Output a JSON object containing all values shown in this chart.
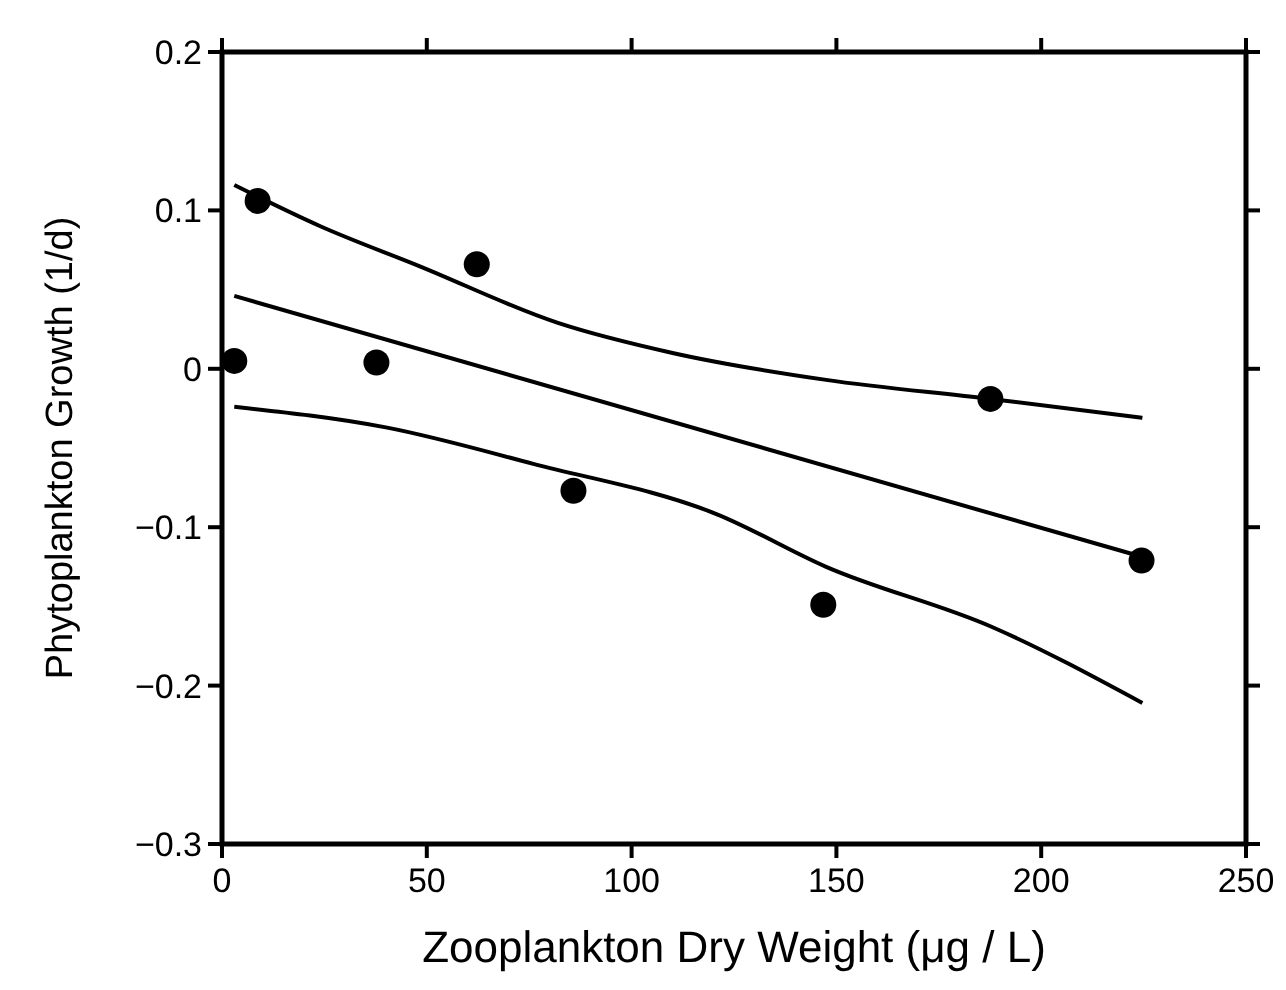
{
  "chart_data": {
    "type": "scatter",
    "xlabel": "Zooplankton Dry Weight (μg / L)",
    "ylabel": "Phytoplankton Growth (1/d)",
    "xlim": [
      0,
      250
    ],
    "xticks": [
      0,
      50,
      100,
      150,
      200,
      250
    ],
    "ylim": [
      -0.3,
      0.2
    ],
    "yticks": [
      {
        "value": -0.3,
        "label": "−0.3"
      },
      {
        "value": -0.2,
        "label": "−0.2"
      },
      {
        "value": -0.1,
        "label": "−0.1"
      },
      0,
      0.1,
      0.2
    ],
    "grid": false,
    "marker": "circle",
    "series": [
      {
        "color": "#000000",
        "x": [
          3,
          8.7,
          37.7,
          62.2,
          85.8,
          146.8,
          187.6,
          224.5
        ],
        "values": [
          0.005,
          0.106,
          0.004,
          0.066,
          -0.077,
          -0.149,
          -0.019,
          -0.121
        ]
      },
      {
        "type": "line",
        "color": "#000000",
        "marker": "none",
        "line_style": "solid",
        "x": [
          3,
          225
        ],
        "values": [
          0.046,
          -0.119
        ]
      },
      {
        "type": "line",
        "color": "#000000",
        "marker": "none",
        "line_style": "solid",
        "x": [
          3,
          24,
          48,
          82,
          110,
          147.5,
          187.6,
          224.7
        ],
        "values": [
          0.116,
          0.09,
          0.065,
          0.029,
          0.01,
          -0.007,
          -0.019,
          -0.031
        ]
      },
      {
        "type": "line",
        "color": "#000000",
        "marker": "none",
        "line_style": "solid",
        "x": [
          3,
          40,
          76,
          121,
          147.5,
          188,
          224.7
        ],
        "values": [
          -0.024,
          -0.037,
          -0.06,
          -0.092,
          -0.125,
          -0.163,
          -0.211
        ]
      }
    ]
  }
}
